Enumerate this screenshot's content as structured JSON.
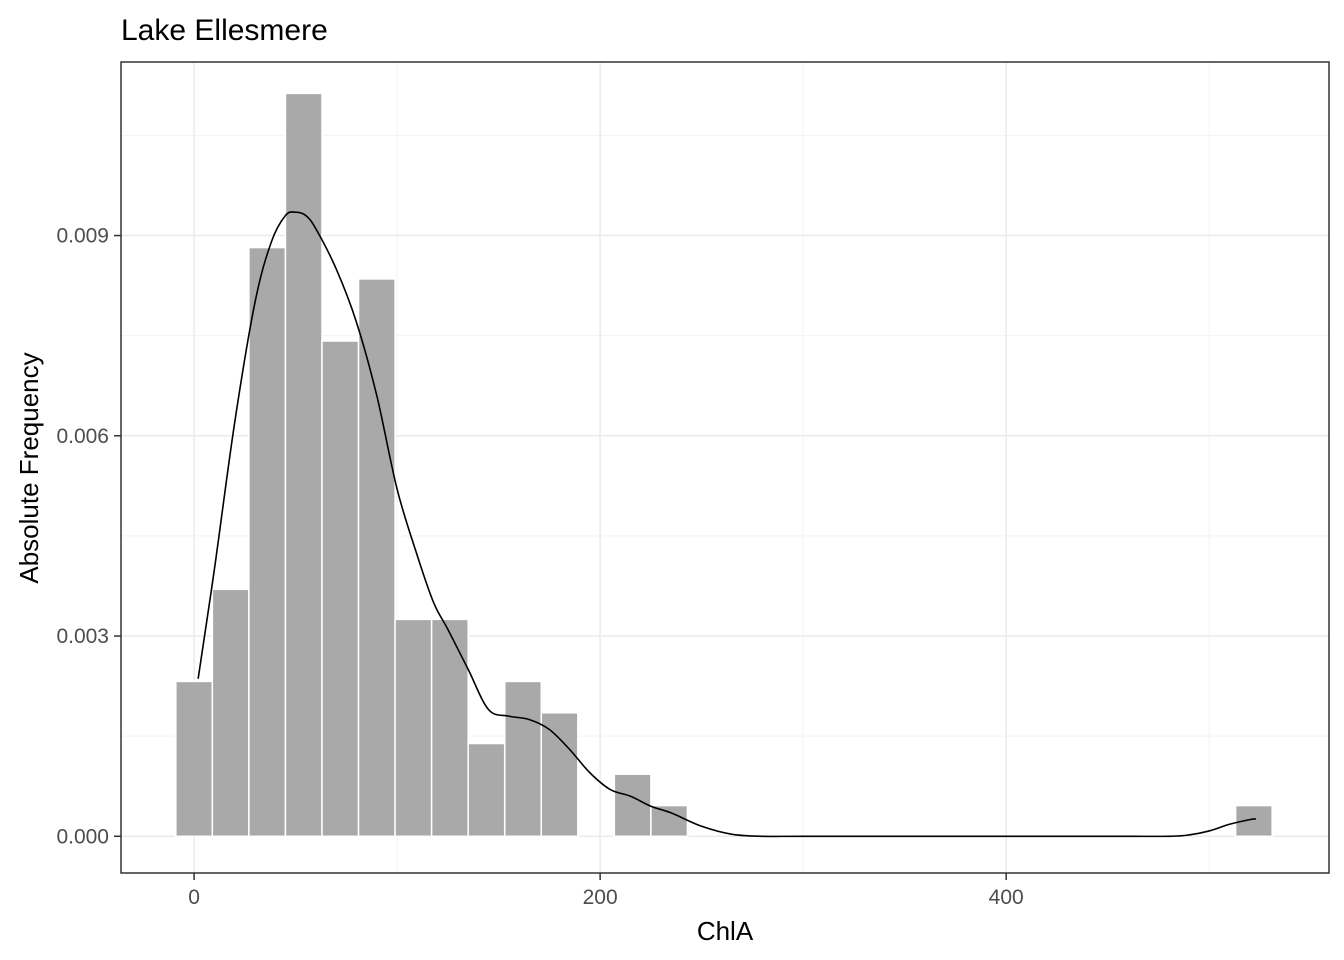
{
  "chart_data": {
    "type": "bar",
    "title": "Lake Ellesmere",
    "xlabel": "ChlA",
    "ylabel": "Absolute Frequency",
    "xlim": [
      -36,
      559
    ],
    "ylim": [
      -0.00055,
      0.0116
    ],
    "x_ticks": [
      0,
      200,
      400
    ],
    "x_tick_labels": [
      "0",
      "200",
      "400"
    ],
    "y_ticks": [
      0.0,
      0.003,
      0.006,
      0.009
    ],
    "y_tick_labels": [
      "0.000",
      "0.003",
      "0.006",
      "0.009"
    ],
    "grid": true,
    "bin_width": 18,
    "bins": [
      {
        "start": -9,
        "end": 9,
        "value": 0.00232
      },
      {
        "start": 9,
        "end": 27,
        "value": 0.0037
      },
      {
        "start": 27,
        "end": 45,
        "value": 0.00882
      },
      {
        "start": 45,
        "end": 63,
        "value": 0.01113
      },
      {
        "start": 63,
        "end": 81,
        "value": 0.00742
      },
      {
        "start": 81,
        "end": 99,
        "value": 0.00835
      },
      {
        "start": 99,
        "end": 117,
        "value": 0.00325
      },
      {
        "start": 117,
        "end": 135,
        "value": 0.00325
      },
      {
        "start": 135,
        "end": 153,
        "value": 0.00139
      },
      {
        "start": 153,
        "end": 171,
        "value": 0.00232
      },
      {
        "start": 171,
        "end": 189,
        "value": 0.00185
      },
      {
        "start": 189,
        "end": 207,
        "value": 0.0
      },
      {
        "start": 207,
        "end": 225,
        "value": 0.00093
      },
      {
        "start": 225,
        "end": 243,
        "value": 0.00046
      },
      {
        "start": 513,
        "end": 531,
        "value": 0.00046
      }
    ],
    "density": {
      "x": [
        2,
        10,
        20,
        30,
        38,
        45,
        50,
        55,
        60,
        70,
        80,
        90,
        100,
        110,
        118,
        125,
        135,
        145,
        155,
        165,
        175,
        185,
        195,
        205,
        215,
        225,
        235,
        250,
        265,
        280,
        300,
        350,
        400,
        450,
        480,
        490,
        500,
        510,
        520,
        523
      ],
      "y": [
        0.00236,
        0.004,
        0.0062,
        0.008,
        0.0089,
        0.0093,
        0.00935,
        0.0093,
        0.0091,
        0.0085,
        0.0077,
        0.0066,
        0.0052,
        0.0042,
        0.0035,
        0.0031,
        0.0025,
        0.0019,
        0.0018,
        0.00175,
        0.0016,
        0.0013,
        0.00095,
        0.0007,
        0.0006,
        0.00045,
        0.00035,
        0.00015,
        3e-05,
        0.0,
        0.0,
        0.0,
        0.0,
        0.0,
        0.0,
        2e-05,
        8e-05,
        0.00018,
        0.00025,
        0.00026
      ]
    },
    "colors": {
      "bar_fill": "#a9a9a9",
      "bar_outline": "#ffffff",
      "density_line": "#000000",
      "grid_major": "#ebebeb",
      "grid_minor": "#f3f3f3",
      "panel_border": "#333333",
      "tick_text": "#4d4d4d"
    }
  }
}
